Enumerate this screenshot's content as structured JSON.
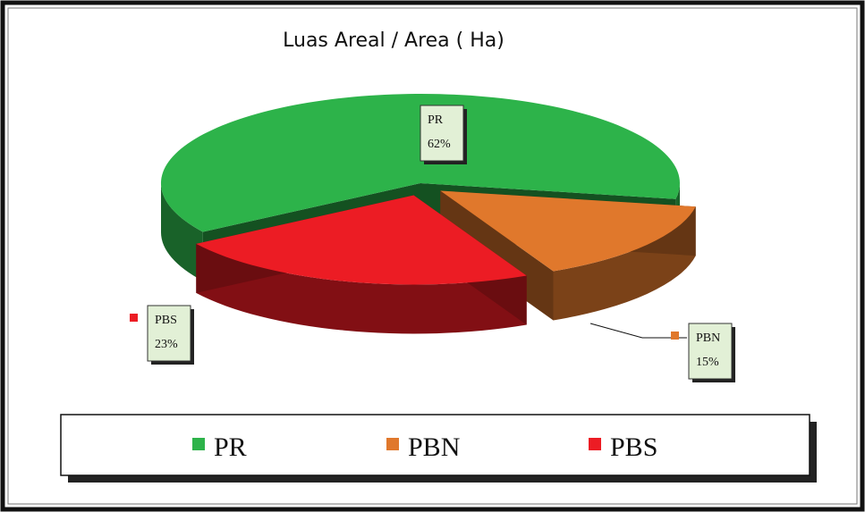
{
  "chart_data": {
    "type": "pie",
    "title": "Luas  Areal / Area ( Ha)",
    "categories": [
      "PR",
      "PBN",
      "PBS"
    ],
    "values": [
      62,
      15,
      23
    ],
    "value_labels": [
      "62%",
      "15%",
      "23%"
    ],
    "colors": [
      "#2db34a",
      "#e0782c",
      "#ec1c24"
    ],
    "legend": "bottom"
  }
}
